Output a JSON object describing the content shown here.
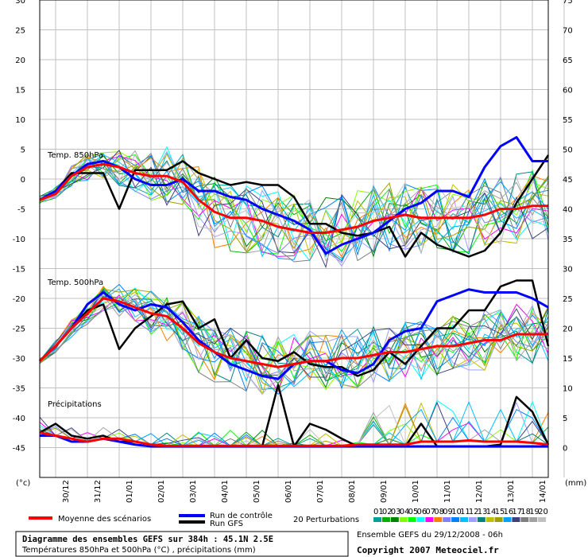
{
  "chart_data": {
    "type": "line",
    "title": "Diagramme des ensembles GEFS sur 384h : 45.1N 2.5E",
    "subtitle": "Températures 850hPa et 500hPa (°C) , précipitations (mm)",
    "run_info": "Ensemble GEFS du 29/12/2008 - 06h",
    "copyright": "Copyright 2007 Meteociel.fr",
    "left_unit": "(°c)",
    "right_unit": "(mm)",
    "left_ylim": [
      -50,
      30
    ],
    "left_ticks": [
      30,
      25,
      20,
      15,
      10,
      5,
      0,
      -5,
      -10,
      -15,
      -20,
      -25,
      -30,
      -35,
      -40,
      -45
    ],
    "right_ticks": [
      75,
      70,
      65,
      60,
      55,
      50,
      45,
      40,
      35,
      30,
      25,
      20,
      15,
      10,
      5,
      0
    ],
    "x_range_days": [
      0,
      16
    ],
    "x_ticks": [
      "30/12",
      "31/12",
      "01/01",
      "02/01",
      "03/01",
      "04/01",
      "05/01",
      "06/01",
      "07/01",
      "08/01",
      "09/01",
      "10/01",
      "11/01",
      "12/01",
      "13/01",
      "14/01"
    ],
    "panel_labels": [
      "Temp. 850hPa",
      "Temp. 500hPa",
      "Précipitations"
    ],
    "legend": {
      "mean": "Moyenne des scénarios",
      "control": "Run de contrôle",
      "gfs": "Run GFS",
      "perturbations": "20 Perturbations",
      "perturbation_ids": [
        "01",
        "02",
        "03",
        "04",
        "05",
        "06",
        "07",
        "08",
        "09",
        "10",
        "11",
        "12",
        "13",
        "14",
        "15",
        "16",
        "17",
        "18",
        "19",
        "20"
      ],
      "perturbation_colors": [
        "#00a0a0",
        "#00b000",
        "#008000",
        "#80ff00",
        "#00ff00",
        "#00ffff",
        "#ff00ff",
        "#ff8000",
        "#8080ff",
        "#0080ff",
        "#00c0ff",
        "#a0a0ff",
        "#008080",
        "#c0c000",
        "#a0a000",
        "#00a0ff",
        "#404080",
        "#808080",
        "#a0a0a0",
        "#c0c0c0"
      ]
    },
    "colors": {
      "mean": "#ff0000",
      "control": "#0000ff",
      "gfs": "#000000"
    },
    "grid": true,
    "series": [
      {
        "name": "Moyenne des scénarios",
        "panel": "850hPa",
        "x": [
          0,
          0.5,
          1,
          1.5,
          2,
          2.5,
          3,
          3.5,
          4,
          4.5,
          5,
          5.5,
          6,
          6.5,
          7,
          7.5,
          8,
          8.5,
          9,
          9.5,
          10,
          10.5,
          11,
          11.5,
          12,
          12.5,
          13,
          13.5,
          14,
          14.5,
          15,
          15.5,
          16
        ],
        "y": [
          -3.5,
          -2.5,
          0.5,
          2,
          2.5,
          2,
          1,
          0.5,
          0.5,
          -0.5,
          -3.5,
          -5.5,
          -6.5,
          -6.5,
          -7,
          -8,
          -8.5,
          -9,
          -9,
          -8.5,
          -8,
          -7,
          -6.5,
          -6,
          -6.5,
          -6.5,
          -6.5,
          -6.5,
          -6,
          -5,
          -5,
          -4.5,
          -4.5
        ]
      },
      {
        "name": "Run de contrôle",
        "panel": "850hPa",
        "x": [
          0,
          0.5,
          1,
          1.5,
          2,
          2.5,
          3,
          3.5,
          4,
          4.5,
          5,
          5.5,
          6,
          6.5,
          7,
          7.5,
          8,
          8.5,
          9,
          9.5,
          10,
          10.5,
          11,
          11.5,
          12,
          12.5,
          13,
          13.5,
          14,
          14.5,
          15,
          15.5,
          16
        ],
        "y": [
          -3.5,
          -2,
          0.5,
          2.5,
          3,
          2,
          0,
          -1,
          -1,
          0,
          -2,
          -2,
          -3,
          -3.5,
          -5,
          -6,
          -7,
          -8.5,
          -12.5,
          -11,
          -10,
          -9,
          -7,
          -5,
          -4,
          -2,
          -2,
          -3,
          2,
          5.5,
          7,
          3,
          3
        ]
      },
      {
        "name": "Run GFS",
        "panel": "850hPa",
        "x": [
          0,
          0.5,
          1,
          1.5,
          2,
          2.5,
          3,
          3.5,
          4,
          4.5,
          5,
          5.5,
          6,
          6.5,
          7,
          7.5,
          8,
          8.5,
          9,
          9.5,
          10,
          10.5,
          11,
          11.5,
          12,
          12.5,
          13,
          13.5,
          14,
          14.5,
          15,
          15.5,
          16
        ],
        "y": [
          -3.5,
          -2,
          1,
          1,
          1,
          -5,
          1.5,
          1.5,
          1.5,
          3,
          1,
          0,
          -1,
          -0.5,
          -1,
          -1,
          -3,
          -7.5,
          -7.5,
          -9,
          -9.5,
          -9,
          -8,
          -13,
          -9,
          -11,
          -12,
          -13,
          -12,
          -9,
          -4,
          0,
          4
        ]
      },
      {
        "name": "Moyenne des scénarios",
        "panel": "500hPa",
        "x": [
          0,
          0.5,
          1,
          1.5,
          2,
          2.5,
          3,
          3.5,
          4,
          4.5,
          5,
          5.5,
          6,
          6.5,
          7,
          7.5,
          8,
          8.5,
          9,
          9.5,
          10,
          10.5,
          11,
          11.5,
          12,
          12.5,
          13,
          13.5,
          14,
          14.5,
          15,
          15.5,
          16
        ],
        "y": [
          -30.5,
          -28,
          -25,
          -22.5,
          -20,
          -20.5,
          -21.5,
          -22.5,
          -23,
          -25,
          -27.5,
          -29,
          -30,
          -30.5,
          -31,
          -31.5,
          -31,
          -30.5,
          -30.5,
          -30,
          -30,
          -29.5,
          -29,
          -29,
          -28.5,
          -28,
          -28,
          -27.5,
          -27,
          -27,
          -26,
          -26,
          -26
        ]
      },
      {
        "name": "Run de contrôle",
        "panel": "500hPa",
        "x": [
          0,
          0.5,
          1,
          1.5,
          2,
          2.5,
          3,
          3.5,
          4,
          4.5,
          5,
          5.5,
          6,
          6.5,
          7,
          7.5,
          8,
          8.5,
          9,
          9.5,
          10,
          10.5,
          11,
          11.5,
          12,
          12.5,
          13,
          13.5,
          14,
          14.5,
          15,
          15.5,
          16
        ],
        "y": [
          -30.5,
          -28,
          -25,
          -21,
          -19,
          -21,
          -22,
          -21,
          -21.5,
          -24,
          -27,
          -29,
          -31,
          -32,
          -33,
          -33.5,
          -31,
          -30.5,
          -30.5,
          -32,
          -32.5,
          -31,
          -27,
          -25.5,
          -25,
          -20.5,
          -19.5,
          -18.5,
          -19,
          -19,
          -19,
          -20,
          -21.5
        ]
      },
      {
        "name": "Run GFS",
        "panel": "500hPa",
        "x": [
          0,
          0.5,
          1,
          1.5,
          2,
          2.5,
          3,
          3.5,
          4,
          4.5,
          5,
          5.5,
          6,
          6.5,
          7,
          7.5,
          8,
          8.5,
          9,
          9.5,
          10,
          10.5,
          11,
          11.5,
          12,
          12.5,
          13,
          13.5,
          14,
          14.5,
          15,
          15.5,
          16
        ],
        "y": [
          -30.5,
          -28,
          -25,
          -22,
          -21,
          -28.5,
          -25,
          -23,
          -21,
          -20.5,
          -25,
          -23.5,
          -30,
          -27,
          -30,
          -30.5,
          -29,
          -31,
          -31.5,
          -31.5,
          -33,
          -32,
          -29,
          -31,
          -28,
          -25,
          -25,
          -22,
          -22,
          -18,
          -17,
          -17,
          -28
        ]
      },
      {
        "name": "Moyenne des scénarios",
        "panel": "precip",
        "x": [
          0,
          0.5,
          1,
          1.5,
          2,
          2.5,
          3,
          3.5,
          4,
          4.5,
          5,
          5.5,
          6,
          6.5,
          7,
          7.5,
          8,
          8.5,
          9,
          9.5,
          10,
          10.5,
          11,
          11.5,
          12,
          12.5,
          13,
          13.5,
          14,
          14.5,
          15,
          15.5,
          16
        ],
        "y": [
          2.5,
          2,
          1.5,
          1,
          1.5,
          1.5,
          1,
          0.5,
          0.3,
          0.3,
          0.3,
          0.3,
          0.3,
          0.3,
          0.3,
          0.3,
          0.3,
          0.3,
          0.3,
          0.3,
          0.5,
          0.5,
          0.5,
          0.5,
          1,
          1,
          1,
          1.2,
          1,
          1,
          1,
          0.8,
          0.5
        ]
      },
      {
        "name": "Run de contrôle",
        "panel": "precip",
        "x": [
          0,
          0.5,
          1,
          1.5,
          2,
          2.5,
          3,
          3.5,
          4,
          4.5,
          5,
          5.5,
          6,
          6.5,
          7,
          7.5,
          8,
          8.5,
          9,
          9.5,
          10,
          10.5,
          11,
          11.5,
          12,
          12.5,
          13,
          13.5,
          14,
          14.5,
          15,
          15.5,
          16
        ],
        "y": [
          2,
          2,
          1,
          1,
          1.5,
          1,
          0.5,
          0.2,
          0.2,
          0.2,
          0.2,
          0.2,
          0.2,
          0.2,
          0.2,
          0.2,
          0.2,
          0.2,
          0.2,
          0.2,
          0.2,
          0.2,
          0.2,
          0.2,
          0.2,
          0.2,
          0.2,
          0.2,
          0.2,
          0.2,
          0.2,
          0.2,
          0.2
        ]
      },
      {
        "name": "Run GFS",
        "panel": "precip",
        "x": [
          0,
          0.5,
          1,
          1.5,
          2,
          2.5,
          3,
          3.5,
          4,
          4.5,
          5,
          5.5,
          6,
          6.5,
          7,
          7.5,
          8,
          8.5,
          9,
          9.5,
          10,
          10.5,
          11,
          11.5,
          12,
          12.5,
          13,
          13.5,
          14,
          14.5,
          15,
          15.5,
          16
        ],
        "y": [
          2.5,
          4,
          2,
          1.5,
          2,
          1,
          1,
          0.5,
          0.2,
          0.2,
          0.2,
          0.2,
          0.2,
          0.2,
          0.2,
          10.5,
          0.2,
          4,
          3,
          1.5,
          0.2,
          0.2,
          0.2,
          0.2,
          4,
          0.2,
          0.2,
          0.2,
          0.2,
          0.5,
          8.5,
          6,
          0.5
        ]
      }
    ]
  }
}
